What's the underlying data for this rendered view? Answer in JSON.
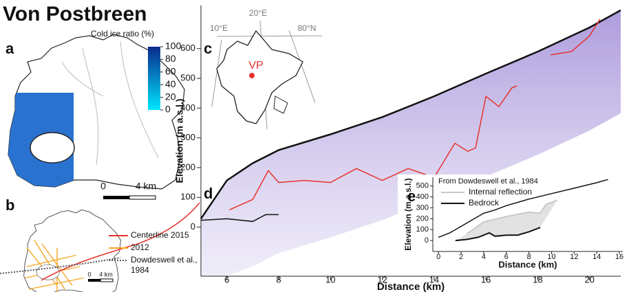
{
  "title": "Von Postbreen",
  "panels": {
    "a": {
      "label": "a",
      "colorbar": {
        "title": "Cold ice ratio (%)",
        "lim": [
          0,
          100
        ],
        "ticks": [
          0,
          20,
          40,
          60,
          80,
          100
        ],
        "colors": [
          "#00e5ff",
          "#0a2a8c"
        ]
      },
      "scale_bar": [
        "0",
        "4 km"
      ]
    },
    "b": {
      "label": "b",
      "legend": [
        {
          "name": "Centerline 2015",
          "color": "#e8312a"
        },
        {
          "name": "2012",
          "color": "#f5a623"
        },
        {
          "name": "Dowdeswell et al., 1984",
          "color": "#555555"
        }
      ],
      "scale_bar": [
        "0",
        "4 km"
      ]
    },
    "c": {
      "label": "c",
      "lon_labels": [
        "10°E",
        "20°E"
      ],
      "lat_label": "80°N",
      "site": "VP"
    },
    "d": {
      "label": "d"
    },
    "e": {
      "label": "e"
    }
  },
  "chart_data": [
    {
      "type": "line",
      "xlabel": "Distance (km)",
      "ylabel": "Elevation (m a.s.l.)",
      "xlim": [
        5,
        21.2
      ],
      "ylim": [
        -165,
        745
      ],
      "xticks": [
        6,
        8,
        10,
        12,
        14,
        16,
        18,
        20
      ],
      "yticks": [
        0,
        100,
        200,
        300,
        400,
        500,
        600
      ],
      "series": [
        {
          "color": "#111111",
          "x": [
            5,
            6,
            7,
            8,
            10,
            12,
            14,
            16,
            18,
            20,
            21.2
          ],
          "values": [
            28,
            157,
            215,
            259,
            312,
            370,
            440,
            516,
            590,
            671,
            729
          ]
        },
        {
          "color": "#e8312a",
          "x": [
            6.1,
            7,
            7.6,
            8,
            9,
            10,
            11,
            12,
            13,
            14,
            14.8,
            15.3,
            15.6,
            16,
            16.5,
            17,
            17.2,
            17.8,
            18.5,
            19.3,
            20,
            20.4
          ],
          "values": [
            58,
            93,
            190,
            150,
            157,
            150,
            197,
            157,
            197,
            167,
            282,
            255,
            266,
            440,
            405,
            468,
            475,
            null,
            579,
            590,
            643,
            699
          ]
        },
        {
          "color": "#111111",
          "x": [
            5,
            6,
            7,
            7.5,
            8
          ],
          "values": [
            23,
            28,
            19,
            42,
            42
          ]
        }
      ]
    },
    {
      "type": "line",
      "title": "From Dowdeswell et al., 1984",
      "xlabel": "Distance (km)",
      "ylabel": "Elevation (m a.s.l.)",
      "xlim": [
        -0.5,
        16.3
      ],
      "ylim": [
        -100,
        580
      ],
      "xticks": [
        0,
        2,
        4,
        6,
        8,
        10,
        12,
        14,
        16
      ],
      "yticks": [
        0,
        100,
        200,
        300,
        400,
        500
      ],
      "series": [
        {
          "color": "#111111",
          "x": [
            0,
            1,
            2,
            3,
            4,
            5,
            6,
            8,
            10,
            12,
            14,
            15
          ],
          "values": [
            30,
            70,
            130,
            190,
            250,
            280,
            320,
            380,
            430,
            480,
            530,
            560
          ]
        },
        {
          "name": "Internal reflection",
          "color": "#c8c8c8",
          "x": [
            2.5,
            4,
            6,
            8,
            9,
            9.5,
            10.5
          ],
          "values": [
            60,
            170,
            220,
            260,
            250,
            330,
            370
          ]
        },
        {
          "name": "Bedrock",
          "color": "#111111",
          "x": [
            1.5,
            2.5,
            3.5,
            4.5,
            5,
            6,
            7,
            8,
            9
          ],
          "values": [
            0,
            10,
            30,
            70,
            40,
            50,
            50,
            80,
            120
          ]
        }
      ]
    }
  ]
}
